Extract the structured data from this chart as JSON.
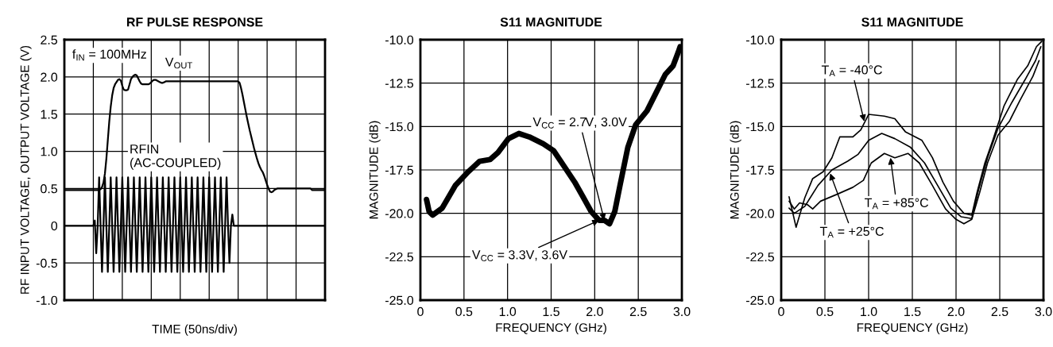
{
  "chart_data": [
    {
      "type": "line",
      "title": "RF PULSE RESPONSE",
      "xlabel": "TIME (50ns/div)",
      "ylabel": "RF INPUT VOLTAGE, OUTPUT VOLTAGE (V)",
      "categories": [
        null,
        null,
        null,
        null,
        null,
        null,
        null,
        null,
        null,
        null,
        null,
        null,
        null,
        null,
        null,
        null,
        null,
        null,
        null,
        null,
        null,
        null,
        null,
        null,
        null,
        null,
        null,
        null,
        null,
        null,
        null,
        null,
        null,
        null,
        null,
        null,
        null,
        null,
        null,
        null,
        null,
        null,
        null,
        null,
        null,
        null,
        null,
        null,
        null,
        null,
        null,
        null,
        null,
        null,
        null,
        null,
        null,
        null,
        null,
        null,
        null,
        null,
        null,
        null,
        null,
        null,
        null,
        null,
        null,
        null,
        null,
        null,
        null,
        null,
        null,
        null,
        null,
        null,
        null,
        null,
        null,
        null,
        null,
        null,
        null,
        null,
        null,
        null,
        null,
        null,
        null,
        null,
        null,
        null,
        null,
        null,
        null,
        null,
        null,
        null,
        null,
        null,
        null,
        null,
        null,
        null,
        null,
        null,
        null,
        null,
        null,
        null,
        null,
        null,
        null,
        null,
        null,
        null,
        null,
        null,
        null,
        null,
        null,
        null,
        null,
        null,
        null,
        null,
        null,
        null,
        null,
        null,
        null,
        null,
        null,
        null,
        null,
        null,
        null,
        null,
        null,
        null,
        null,
        null,
        null,
        null,
        null,
        null,
        null,
        null,
        null,
        null,
        null,
        null,
        null,
        null,
        null,
        null,
        null,
        null,
        null,
        null,
        null,
        null,
        null,
        null,
        null,
        null,
        null,
        null,
        null,
        null,
        null,
        null,
        null,
        null,
        null,
        null,
        null,
        null,
        null
      ],
      "series": [
        {
          "name": "V$_{OUT}$",
          "color": "#000000",
          "values": [
            0.48,
            0.48,
            0.48,
            0.48,
            0.48,
            0.48,
            0.48,
            0.48,
            0.48,
            0.48,
            0.48,
            0.48,
            0.48,
            0.48,
            0.48,
            0.48,
            0.48,
            0.48,
            0.48,
            0.48,
            0.48,
            0.48,
            0.48,
            0.48,
            0.48,
            0.49,
            0.52,
            0.58,
            0.7,
            0.9,
            1.15,
            1.4,
            1.6,
            1.75,
            1.85,
            1.9,
            1.93,
            1.96,
            1.97,
            1.95,
            1.88,
            1.83,
            1.82,
            1.82,
            1.83,
            1.9,
            1.97,
            2.0,
            2.02,
            2.03,
            2.02,
            1.98,
            1.94,
            1.91,
            1.9,
            1.9,
            1.9,
            1.9,
            1.9,
            1.91,
            1.93,
            1.95,
            1.96,
            1.96,
            1.95,
            1.94,
            1.93,
            1.92,
            1.92,
            1.93,
            1.94,
            1.94,
            1.94,
            1.94,
            1.94,
            1.94,
            1.94,
            1.94,
            1.94,
            1.94,
            1.94,
            1.94,
            1.94,
            1.94,
            1.94,
            1.94,
            1.94,
            1.94,
            1.94,
            1.94,
            1.94,
            1.94,
            1.94,
            1.94,
            1.94,
            1.94,
            1.94,
            1.94,
            1.94,
            1.94,
            1.94,
            1.94,
            1.94,
            1.94,
            1.94,
            1.94,
            1.94,
            1.94,
            1.94,
            1.94,
            1.94,
            1.94,
            1.94,
            1.94,
            1.94,
            1.94,
            1.94,
            1.94,
            1.94,
            1.94,
            1.94,
            1.92,
            1.85,
            1.76,
            1.66,
            1.56,
            1.46,
            1.37,
            1.28,
            1.2,
            1.12,
            1.04,
            0.97,
            0.9,
            0.84,
            0.79,
            0.75,
            0.72,
            0.67,
            0.61,
            0.55,
            0.5,
            0.46,
            0.45,
            0.46,
            0.48,
            0.49,
            0.5,
            0.5,
            0.5,
            0.5,
            0.5,
            0.5,
            0.5,
            0.5,
            0.5,
            0.5,
            0.5,
            0.5,
            0.5,
            0.5,
            0.5,
            0.5,
            0.5,
            0.5,
            0.5,
            0.5,
            0.5,
            0.5,
            0.5,
            0.5,
            0.48,
            0.48,
            0.48,
            0.48,
            0.48,
            0.48,
            0.48,
            0.48,
            0.48,
            0.48
          ]
        },
        {
          "name": "RFIN\n(AC-COUPLED)",
          "color": "#000000",
          "values": [
            0,
            0,
            0,
            0,
            0,
            0,
            0,
            0,
            0,
            0,
            0,
            0,
            0,
            0,
            0,
            0,
            0,
            0,
            0,
            0,
            0,
            0.07,
            -0.37,
            0,
            0.65,
            0,
            -0.62,
            0,
            0.65,
            0,
            -0.62,
            0,
            0.65,
            0,
            -0.62,
            0,
            0.65,
            0,
            -0.62,
            0,
            0.65,
            0,
            -0.62,
            0,
            0.65,
            0,
            -0.62,
            0,
            0.65,
            0,
            -0.62,
            0,
            0.65,
            0,
            -0.62,
            0,
            0.65,
            0,
            -0.62,
            0,
            0.65,
            0,
            -0.62,
            0,
            0.65,
            0,
            -0.62,
            0,
            0.65,
            0,
            -0.62,
            0,
            0.65,
            0,
            -0.62,
            0,
            0.65,
            0,
            -0.62,
            0,
            0.65,
            0,
            -0.62,
            0,
            0.65,
            0,
            -0.62,
            0,
            0.65,
            0,
            -0.62,
            0,
            0.65,
            0,
            -0.62,
            0,
            0.65,
            0,
            -0.62,
            0,
            0.65,
            0,
            -0.62,
            0,
            0.65,
            0,
            -0.62,
            0,
            0.65,
            0,
            -0.62,
            0,
            0.65,
            0,
            -0.5,
            0,
            0.15,
            0,
            0,
            0,
            0,
            0,
            0,
            0,
            0,
            0,
            0,
            0,
            0,
            0,
            0,
            0,
            0,
            0,
            0,
            0,
            0,
            0,
            0,
            0,
            0,
            0,
            0,
            0,
            0,
            0,
            0,
            0,
            0,
            0,
            0,
            0,
            0,
            0,
            0,
            0,
            0,
            0,
            0,
            0,
            0,
            0,
            0,
            0,
            0,
            0,
            0,
            0,
            0,
            0,
            0,
            0,
            0,
            0,
            0,
            0,
            0,
            0,
            0,
            0,
            0
          ]
        }
      ],
      "ylim": [
        -1,
        2.5
      ],
      "yticks": [
        {
          "value": -1,
          "label": "-1.0"
        },
        -0.5,
        0,
        0.5,
        {
          "value": 1,
          "label": "1.0"
        },
        1.5,
        {
          "value": 2,
          "label": "2.0"
        },
        2.5
      ],
      "tick_labels": "y",
      "grid": true,
      "annotations": [
        "f$_{IN}$ = 100MHz"
      ]
    },
    {
      "type": "line",
      "title": "S11 MAGNITUDE",
      "xlabel": "FREQUENCY (GHz)",
      "ylabel": "MAGNITUDE (dB)",
      "series": [
        {
          "color": "#000000",
          "x": [
            0.07,
            0.1,
            0.14,
            0.25,
            0.4,
            0.55,
            0.68,
            0.8,
            0.89,
            1.01,
            1.13,
            1.25,
            1.41,
            1.53,
            1.65,
            1.77,
            1.86,
            1.96,
            2.05,
            2.11,
            2.17,
            2.23,
            2.29,
            2.38,
            2.47,
            2.6,
            2.72,
            2.81,
            2.9,
            2.96,
            2.98
          ],
          "values": [
            -19.2,
            -19.9,
            -20.1,
            -19.7,
            -18.4,
            -17.6,
            -17.0,
            -16.9,
            -16.5,
            -15.7,
            -15.4,
            -15.6,
            -16.0,
            -16.4,
            -17.3,
            -18.2,
            -19.0,
            -19.9,
            -20.4,
            -20.4,
            -20.6,
            -19.9,
            -18.4,
            -16.2,
            -14.9,
            -14.1,
            -12.9,
            -12.0,
            -11.5,
            -10.7,
            -10.4
          ]
        }
      ],
      "xlim": [
        0,
        3
      ],
      "xticks": [
        0,
        0.5,
        {
          "value": 1,
          "label": "1.0"
        },
        1.5,
        {
          "value": 2,
          "label": "2.0"
        },
        2.5,
        {
          "value": 3,
          "label": "3.0"
        }
      ],
      "ylim": [
        -25,
        -10
      ],
      "yticks": [
        {
          "value": -25,
          "label": "-25.0"
        },
        -22.5,
        {
          "value": -20,
          "label": "-20.0"
        },
        -17.5,
        {
          "value": -15,
          "label": "-15.0"
        },
        -12.5,
        {
          "value": -10,
          "label": "-10.0"
        }
      ],
      "grid": true,
      "annotations": [
        {
          "text": "V$_{CC}$ = 2.7V, 3.0V",
          "x": 2.11,
          "y": -20.4
        },
        {
          "text": "V$_{CC}$ = 3.3V, 3.6V",
          "x": 2.05,
          "y": -20.4
        }
      ]
    },
    {
      "type": "line",
      "title": "S11 MAGNITUDE",
      "xlabel": "FREQUENCY (GHz)",
      "ylabel": "MAGNITUDE (dB)",
      "series": [
        {
          "color": "#000000",
          "x": [
            0.09,
            0.12,
            0.17,
            0.27,
            0.36,
            0.48,
            0.58,
            0.67,
            0.82,
            0.91,
            1.0,
            1.18,
            1.3,
            1.42,
            1.61,
            1.73,
            1.85,
            1.97,
            2.09,
            2.18,
            2.24,
            2.33,
            2.42,
            2.55,
            2.7,
            2.82,
            2.92,
            2.98
          ],
          "values": [
            -19.05,
            -19.7,
            -20.8,
            -19.1,
            -18.0,
            -17.6,
            -16.8,
            -15.6,
            -15.6,
            -15.2,
            -14.3,
            -14.4,
            -14.55,
            -15.3,
            -15.8,
            -16.8,
            -18.2,
            -19.3,
            -20.0,
            -20.1,
            -18.8,
            -17.1,
            -15.8,
            -13.8,
            -12.3,
            -11.5,
            -10.4,
            -10.1
          ]
        },
        {
          "color": "#000000",
          "x": [
            0.09,
            0.15,
            0.27,
            0.42,
            0.58,
            0.76,
            0.88,
            1.0,
            1.15,
            1.3,
            1.48,
            1.64,
            1.79,
            1.94,
            2.06,
            2.18,
            2.26,
            2.36,
            2.48,
            2.64,
            2.79,
            2.91,
            2.97
          ],
          "values": [
            -19.7,
            -20.0,
            -19.6,
            -18.4,
            -17.5,
            -17.0,
            -16.6,
            -15.8,
            -15.4,
            -15.7,
            -16.2,
            -17.1,
            -18.4,
            -19.7,
            -20.2,
            -20.3,
            -18.6,
            -16.8,
            -15.1,
            -13.6,
            -12.3,
            -11.2,
            -10.4
          ]
        },
        {
          "color": "#000000",
          "x": [
            0.09,
            0.15,
            0.21,
            0.3,
            0.36,
            0.45,
            0.64,
            0.82,
            0.94,
            1.03,
            1.18,
            1.3,
            1.45,
            1.58,
            1.73,
            1.88,
            2.0,
            2.09,
            2.18,
            2.27,
            2.36,
            2.48,
            2.61,
            2.73,
            2.88,
            2.95
          ],
          "values": [
            -19.3,
            -19.75,
            -19.4,
            -19.5,
            -19.75,
            -19.3,
            -18.9,
            -18.5,
            -18.1,
            -17.1,
            -16.55,
            -16.8,
            -16.55,
            -17.1,
            -18.4,
            -19.75,
            -20.35,
            -20.6,
            -20.35,
            -18.8,
            -17.1,
            -15.5,
            -14.7,
            -13.5,
            -12.1,
            -11.2
          ]
        }
      ],
      "xlim": [
        0,
        3
      ],
      "xticks": [
        0,
        0.5,
        {
          "value": 1,
          "label": "1.0"
        },
        1.5,
        {
          "value": 2,
          "label": "2.0"
        },
        2.5,
        {
          "value": 3,
          "label": "3.0"
        }
      ],
      "ylim": [
        -25,
        -10
      ],
      "yticks": [
        {
          "value": -25,
          "label": "-25.0"
        },
        -22.5,
        {
          "value": -20,
          "label": "-20.0"
        },
        -17.5,
        {
          "value": -15,
          "label": "-15.0"
        },
        -12.5,
        {
          "value": -10,
          "label": "-10.0"
        }
      ],
      "grid": true,
      "annotations": [
        {
          "text": "T$_{A}$ = -40°C",
          "x": 0.95,
          "y": -14.7
        },
        {
          "text": "T$_{A}$ = +85°C",
          "x": 1.25,
          "y": -16.8
        },
        {
          "text": "T$_{A}$ = +25°C",
          "x": 0.56,
          "y": -17.7
        }
      ]
    }
  ]
}
